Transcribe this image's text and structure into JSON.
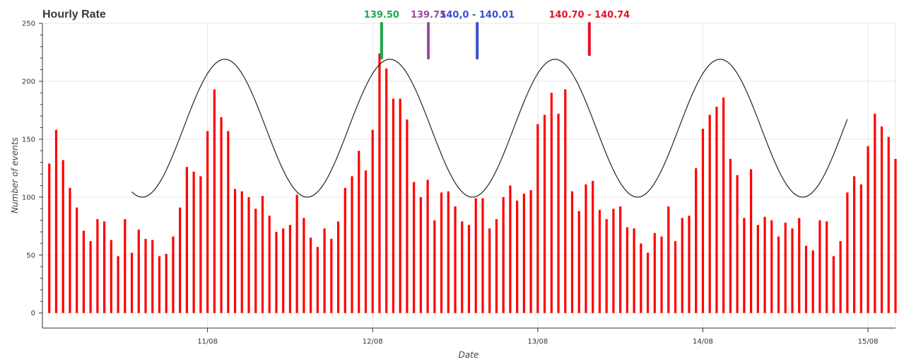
{
  "chart_data": {
    "type": "bar",
    "title": "Hourly Rate",
    "xlabel": "Date",
    "ylabel": "Number of events",
    "ylim": [
      -13,
      250
    ],
    "yticks": [
      0,
      50,
      100,
      150,
      200,
      250
    ],
    "x_tick_labels": [
      "11/08",
      "12/08",
      "13/08",
      "14/08",
      "15/08"
    ],
    "x_unit": "hours since 10/08 00:00",
    "xlim": [
      0,
      124
    ],
    "x_ticks": [
      24,
      48,
      72,
      96,
      120
    ],
    "bar_color": "#ff0000",
    "series": [
      {
        "name": "Number of events",
        "kind": "bar",
        "x_start": 1,
        "values": [
          129,
          158,
          132,
          108,
          91,
          71,
          62,
          81,
          79,
          63,
          49,
          81,
          52,
          72,
          64,
          63,
          49,
          51,
          66,
          91,
          126,
          122,
          118,
          157,
          193,
          169,
          157,
          107,
          105,
          100,
          90,
          101,
          84,
          70,
          73,
          76,
          102,
          82,
          65,
          57,
          73,
          64,
          79,
          108,
          118,
          140,
          123,
          158,
          224,
          211,
          185,
          185,
          167,
          113,
          100,
          115,
          80,
          104,
          105,
          92,
          79,
          76,
          99,
          99,
          73,
          81,
          100,
          110,
          97,
          103,
          106,
          163,
          171,
          190,
          172,
          193,
          105,
          88,
          111,
          114,
          89,
          81,
          90,
          92,
          74,
          73,
          60,
          52,
          69,
          66,
          92,
          62,
          82,
          84,
          125,
          159,
          171,
          178,
          186,
          133,
          119,
          82,
          124,
          76,
          83,
          80,
          66,
          78,
          73,
          82,
          58,
          54,
          80,
          79,
          49,
          62,
          104,
          118,
          111,
          144,
          172,
          161,
          152,
          133
        ]
      },
      {
        "name": "Model",
        "kind": "line",
        "color": "#222222",
        "x_start": 13,
        "x_end": 117,
        "mean": 159.5,
        "amplitude": 59.5,
        "period_hours": 24,
        "peak_at_hour": 26.5
      }
    ],
    "annotations": [
      {
        "label": "139.50",
        "color": "#1aa84a",
        "x": 49.3,
        "y_top": 250,
        "y_bottom": 220
      },
      {
        "label": "139.75",
        "color": "#9b4aa0",
        "x": 56.1,
        "y_top": 250,
        "y_bottom": 220
      },
      {
        "label": "140,0 - 140.01",
        "color": "#3a4fd1",
        "x": 63.2,
        "y_top": 250,
        "y_bottom": 220
      },
      {
        "label": "140.70 - 140.74",
        "color": "#e8112b",
        "x": 79.5,
        "y_top": 250,
        "y_bottom": 223
      }
    ],
    "grid": true
  }
}
